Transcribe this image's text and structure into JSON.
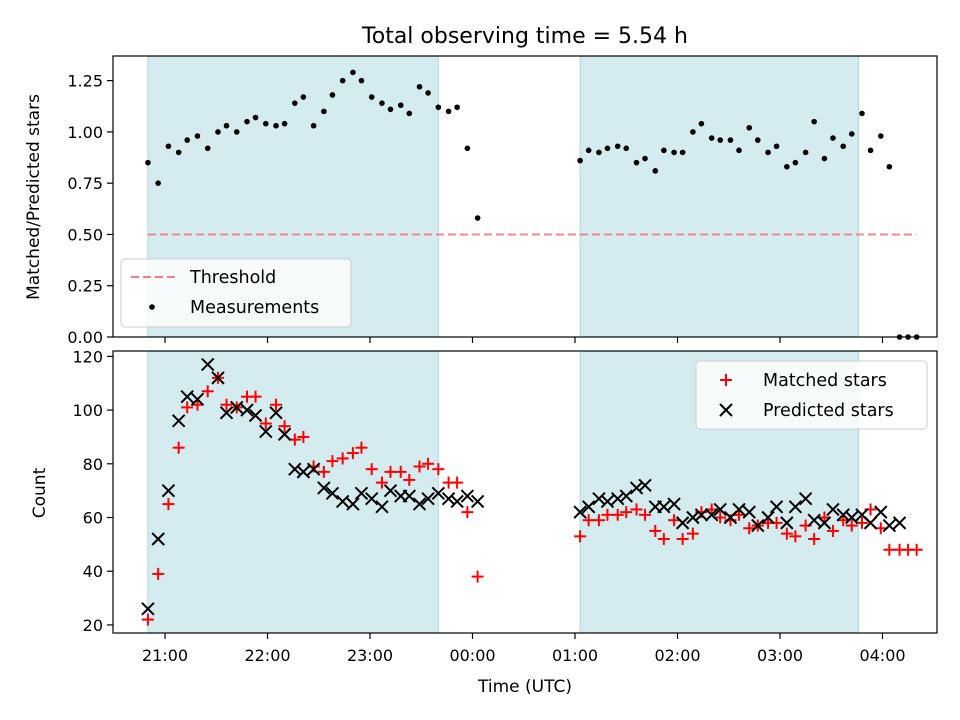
{
  "chart_data": [
    {
      "type": "scatter",
      "title": "Total observing time = 5.54 h",
      "ylabel": "Matched/Predicted stars",
      "xlabel": "",
      "ylim": [
        0,
        1.37
      ],
      "yticks": [
        0,
        0.25,
        0.5,
        0.75,
        1.0,
        1.25
      ],
      "ytick_labels": [
        "0.00",
        "0.25",
        "0.50",
        "0.75",
        "1.00",
        "1.25"
      ],
      "x_axis": "time",
      "legend_placement": "lower-left",
      "observing_windows": [
        [
          "20:50",
          "23:40"
        ],
        [
          "01:03",
          "03:46"
        ]
      ],
      "threshold": {
        "name": "Threshold",
        "value": 0.5,
        "x_range": [
          "20:50",
          "04:20"
        ],
        "color": "#f37c7c"
      },
      "series": [
        {
          "name": "Measurements",
          "color": "#000000",
          "marker": "dot",
          "points": [
            [
              "20:50",
              0.85
            ],
            [
              "20:56",
              0.75
            ],
            [
              "21:02",
              0.93
            ],
            [
              "21:08",
              0.9
            ],
            [
              "21:13",
              0.96
            ],
            [
              "21:19",
              0.98
            ],
            [
              "21:25",
              0.92
            ],
            [
              "21:31",
              1.0
            ],
            [
              "21:36",
              1.03
            ],
            [
              "21:42",
              1.0
            ],
            [
              "21:48",
              1.05
            ],
            [
              "21:53",
              1.07
            ],
            [
              "21:59",
              1.04
            ],
            [
              "22:05",
              1.03
            ],
            [
              "22:10",
              1.04
            ],
            [
              "22:16",
              1.14
            ],
            [
              "22:21",
              1.17
            ],
            [
              "22:27",
              1.03
            ],
            [
              "22:33",
              1.1
            ],
            [
              "22:38",
              1.18
            ],
            [
              "22:44",
              1.25
            ],
            [
              "22:50",
              1.29
            ],
            [
              "22:55",
              1.25
            ],
            [
              "23:01",
              1.17
            ],
            [
              "23:07",
              1.14
            ],
            [
              "23:12",
              1.11
            ],
            [
              "23:18",
              1.13
            ],
            [
              "23:23",
              1.09
            ],
            [
              "23:29",
              1.22
            ],
            [
              "23:34",
              1.19
            ],
            [
              "23:40",
              1.12
            ],
            [
              "23:46",
              1.1
            ],
            [
              "23:51",
              1.12
            ],
            [
              "23:57",
              0.92
            ],
            [
              "00:03",
              0.58
            ],
            [
              "01:03",
              0.86
            ],
            [
              "01:08",
              0.91
            ],
            [
              "01:14",
              0.9
            ],
            [
              "01:19",
              0.92
            ],
            [
              "01:25",
              0.93
            ],
            [
              "01:30",
              0.92
            ],
            [
              "01:36",
              0.85
            ],
            [
              "01:41",
              0.87
            ],
            [
              "01:47",
              0.81
            ],
            [
              "01:52",
              0.91
            ],
            [
              "01:58",
              0.9
            ],
            [
              "02:03",
              0.9
            ],
            [
              "02:09",
              1.0
            ],
            [
              "02:14",
              1.04
            ],
            [
              "02:20",
              0.97
            ],
            [
              "02:25",
              0.96
            ],
            [
              "02:31",
              0.96
            ],
            [
              "02:36",
              0.91
            ],
            [
              "02:42",
              1.02
            ],
            [
              "02:47",
              0.96
            ],
            [
              "02:53",
              0.9
            ],
            [
              "02:58",
              0.93
            ],
            [
              "03:04",
              0.83
            ],
            [
              "03:09",
              0.85
            ],
            [
              "03:15",
              0.9
            ],
            [
              "03:20",
              1.05
            ],
            [
              "03:26",
              0.87
            ],
            [
              "03:31",
              0.97
            ],
            [
              "03:37",
              0.93
            ],
            [
              "03:42",
              0.99
            ],
            [
              "03:48",
              1.09
            ],
            [
              "03:53",
              0.91
            ],
            [
              "03:59",
              0.98
            ],
            [
              "04:04",
              0.83
            ],
            [
              "04:10",
              0.0
            ],
            [
              "04:15",
              0.0
            ],
            [
              "04:20",
              0.0
            ]
          ]
        }
      ]
    },
    {
      "type": "scatter",
      "title": "",
      "xlabel": "Time (UTC)",
      "ylabel": "Count",
      "ylim": [
        17,
        122
      ],
      "yticks": [
        20,
        40,
        60,
        80,
        100,
        120
      ],
      "ytick_labels": [
        "20",
        "40",
        "60",
        "80",
        "100",
        "120"
      ],
      "x_axis": "time",
      "xticks": [
        "21:00",
        "22:00",
        "23:00",
        "00:00",
        "01:00",
        "02:00",
        "03:00",
        "04:00"
      ],
      "legend_placement": "upper-right",
      "observing_windows": [
        [
          "20:50",
          "23:40"
        ],
        [
          "01:03",
          "03:46"
        ]
      ],
      "series": [
        {
          "name": "Matched stars",
          "color": "#ff0000",
          "marker": "plus",
          "points": [
            [
              "20:50",
              22
            ],
            [
              "20:56",
              39
            ],
            [
              "21:02",
              65
            ],
            [
              "21:08",
              86
            ],
            [
              "21:13",
              101
            ],
            [
              "21:19",
              102
            ],
            [
              "21:25",
              107
            ],
            [
              "21:31",
              112
            ],
            [
              "21:36",
              102
            ],
            [
              "21:42",
              101
            ],
            [
              "21:48",
              105
            ],
            [
              "21:53",
              105
            ],
            [
              "21:59",
              95
            ],
            [
              "22:05",
              102
            ],
            [
              "22:10",
              94
            ],
            [
              "22:16",
              89
            ],
            [
              "22:21",
              90
            ],
            [
              "22:27",
              79
            ],
            [
              "22:33",
              77
            ],
            [
              "22:38",
              81
            ],
            [
              "22:44",
              82
            ],
            [
              "22:50",
              84
            ],
            [
              "22:55",
              86
            ],
            [
              "23:01",
              78
            ],
            [
              "23:07",
              73
            ],
            [
              "23:12",
              77
            ],
            [
              "23:18",
              77
            ],
            [
              "23:23",
              74
            ],
            [
              "23:29",
              79
            ],
            [
              "23:34",
              80
            ],
            [
              "23:40",
              78
            ],
            [
              "23:46",
              73
            ],
            [
              "23:51",
              73
            ],
            [
              "23:57",
              62
            ],
            [
              "00:03",
              38
            ],
            [
              "01:03",
              53
            ],
            [
              "01:08",
              59
            ],
            [
              "01:14",
              59
            ],
            [
              "01:19",
              61
            ],
            [
              "01:25",
              61
            ],
            [
              "01:30",
              62
            ],
            [
              "01:36",
              63
            ],
            [
              "01:41",
              61
            ],
            [
              "01:47",
              55
            ],
            [
              "01:52",
              52
            ],
            [
              "01:58",
              59
            ],
            [
              "02:03",
              52
            ],
            [
              "02:09",
              54
            ],
            [
              "02:14",
              62
            ],
            [
              "02:20",
              63
            ],
            [
              "02:25",
              60
            ],
            [
              "02:31",
              59
            ],
            [
              "02:36",
              61
            ],
            [
              "02:42",
              56
            ],
            [
              "02:47",
              57
            ],
            [
              "02:53",
              58
            ],
            [
              "02:58",
              58
            ],
            [
              "03:04",
              54
            ],
            [
              "03:09",
              53
            ],
            [
              "03:15",
              57
            ],
            [
              "03:20",
              52
            ],
            [
              "03:26",
              60
            ],
            [
              "03:31",
              55
            ],
            [
              "03:37",
              59
            ],
            [
              "03:42",
              57
            ],
            [
              "03:48",
              58
            ],
            [
              "03:53",
              63
            ],
            [
              "03:59",
              56
            ],
            [
              "04:04",
              48
            ],
            [
              "04:10",
              48
            ],
            [
              "04:15",
              48
            ],
            [
              "04:20",
              48
            ]
          ]
        },
        {
          "name": "Predicted stars",
          "color": "#000000",
          "marker": "x",
          "points": [
            [
              "20:50",
              26
            ],
            [
              "20:56",
              52
            ],
            [
              "21:02",
              70
            ],
            [
              "21:08",
              96
            ],
            [
              "21:13",
              105
            ],
            [
              "21:19",
              104
            ],
            [
              "21:25",
              117
            ],
            [
              "21:31",
              112
            ],
            [
              "21:36",
              99
            ],
            [
              "21:42",
              101
            ],
            [
              "21:48",
              100
            ],
            [
              "21:53",
              98
            ],
            [
              "21:59",
              92
            ],
            [
              "22:05",
              99
            ],
            [
              "22:10",
              91
            ],
            [
              "22:16",
              78
            ],
            [
              "22:21",
              77
            ],
            [
              "22:27",
              78
            ],
            [
              "22:33",
              71
            ],
            [
              "22:38",
              69
            ],
            [
              "22:44",
              66
            ],
            [
              "22:50",
              65
            ],
            [
              "22:55",
              69
            ],
            [
              "23:01",
              67
            ],
            [
              "23:07",
              64
            ],
            [
              "23:12",
              70
            ],
            [
              "23:18",
              68
            ],
            [
              "23:23",
              68
            ],
            [
              "23:29",
              65
            ],
            [
              "23:34",
              67
            ],
            [
              "23:40",
              69
            ],
            [
              "23:46",
              67
            ],
            [
              "23:51",
              66
            ],
            [
              "23:57",
              68
            ],
            [
              "00:03",
              66
            ],
            [
              "01:03",
              62
            ],
            [
              "01:08",
              64
            ],
            [
              "01:14",
              67
            ],
            [
              "01:19",
              66
            ],
            [
              "01:25",
              67
            ],
            [
              "01:30",
              68
            ],
            [
              "01:36",
              71
            ],
            [
              "01:41",
              72
            ],
            [
              "01:47",
              64
            ],
            [
              "01:52",
              64
            ],
            [
              "01:58",
              65
            ],
            [
              "02:03",
              58
            ],
            [
              "02:09",
              60
            ],
            [
              "02:14",
              61
            ],
            [
              "02:20",
              61
            ],
            [
              "02:25",
              63
            ],
            [
              "02:31",
              60
            ],
            [
              "02:36",
              63
            ],
            [
              "02:42",
              62
            ],
            [
              "02:47",
              57
            ],
            [
              "02:53",
              60
            ],
            [
              "02:58",
              64
            ],
            [
              "03:04",
              58
            ],
            [
              "03:09",
              64
            ],
            [
              "03:15",
              67
            ],
            [
              "03:20",
              59
            ],
            [
              "03:26",
              58
            ],
            [
              "03:31",
              63
            ],
            [
              "03:37",
              61
            ],
            [
              "03:42",
              60
            ],
            [
              "03:48",
              61
            ],
            [
              "03:53",
              58
            ],
            [
              "03:59",
              62
            ],
            [
              "04:04",
              57
            ],
            [
              "04:10",
              58
            ]
          ]
        }
      ]
    }
  ],
  "annotations": {
    "legend_threshold": "Threshold",
    "legend_measurements": "Measurements",
    "legend_matched": "Matched stars",
    "legend_predicted": "Predicted stars"
  },
  "colors": {
    "window_fill": "#d4ebf0",
    "window_edge": "#add8e6",
    "threshold": "#f37c7c",
    "matched": "#ff0000",
    "predicted": "#000000",
    "measurements": "#000000"
  }
}
